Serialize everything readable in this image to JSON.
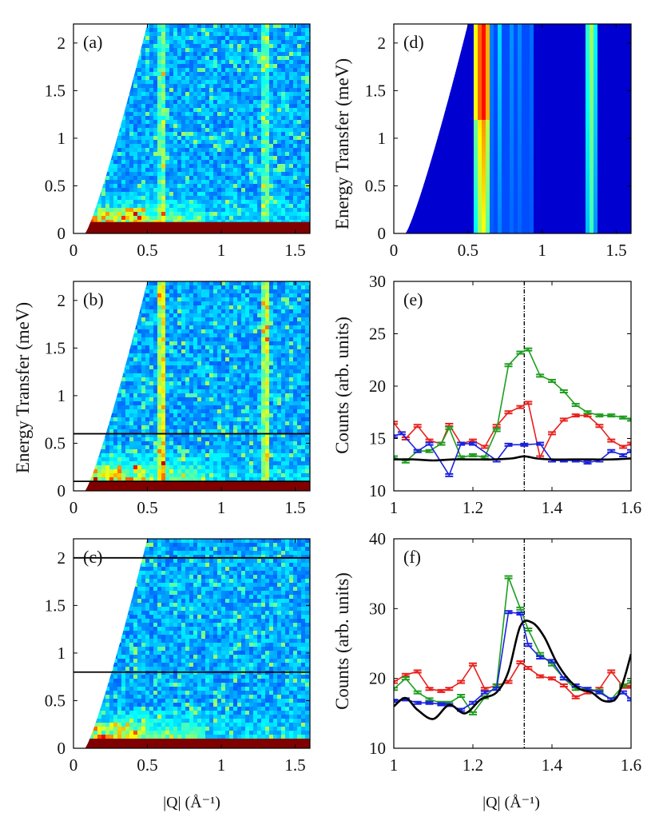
{
  "colors": {
    "dark_blue": "#00008f",
    "dark_red": "#800000",
    "red_series": "#e8201c",
    "green_series": "#1e9e1e",
    "blue_series": "#1a22e0",
    "model_line": "#000000"
  },
  "chart_data": [
    {
      "id": "a",
      "type": "heatmap",
      "letter": "(a)",
      "xlim": [
        0,
        1.6
      ],
      "ylim": [
        0,
        2.2
      ],
      "x_ticks": [
        "0",
        "0.5",
        "1",
        "1.5"
      ],
      "y_ticks": [
        "0",
        "0.5",
        "1",
        "1.5",
        "2"
      ],
      "streaks_Q": [
        0.6,
        1.3
      ],
      "elastic_line_meV": 0.12,
      "cut_lines_meV": []
    },
    {
      "id": "b",
      "type": "heatmap",
      "letter": "(b)",
      "xlim": [
        0,
        1.6
      ],
      "ylim": [
        0,
        2.2
      ],
      "x_ticks": [
        "0",
        "0.5",
        "1",
        "1.5"
      ],
      "y_ticks": [
        "0",
        "0.5",
        "1",
        "1.5",
        "2"
      ],
      "ylabel": "Energy Transfer (meV)",
      "streaks_Q": [
        0.6,
        1.3
      ],
      "elastic_line_meV": 0.1,
      "cut_lines_meV": [
        0.1,
        0.6
      ]
    },
    {
      "id": "c",
      "type": "heatmap",
      "letter": "(c)",
      "xlim": [
        0,
        1.6
      ],
      "ylim": [
        0,
        2.2
      ],
      "x_ticks": [
        "0",
        "0.5",
        "1",
        "1.5"
      ],
      "y_ticks": [
        "0",
        "0.5",
        "1",
        "1.5",
        "2"
      ],
      "xlabel": "|Q| (Å⁻¹)",
      "streaks_Q": [],
      "elastic_line_meV": 0.1,
      "cut_lines_meV": [
        0.8,
        2.0
      ]
    },
    {
      "id": "d",
      "type": "heatmap",
      "letter": "(d)",
      "xlim": [
        0,
        1.6
      ],
      "ylim": [
        0,
        2.2
      ],
      "x_ticks": [
        "0",
        "0.5",
        "1",
        "1.5"
      ],
      "y_ticks": [
        "0",
        "0.5",
        "1",
        "1.5",
        "2"
      ],
      "ylabel": "Energy Transfer (meV)",
      "streaks_Q": [
        0.6,
        1.33
      ],
      "cut_lines_meV": []
    },
    {
      "id": "e",
      "type": "line",
      "letter": "(e)",
      "xlim": [
        1,
        1.6
      ],
      "ylim": [
        10,
        30
      ],
      "x_ticks": [
        "1",
        "1.2",
        "1.4",
        "1.6"
      ],
      "y_ticks": [
        "10",
        "15",
        "20",
        "25",
        "30"
      ],
      "ylabel": "Counts (arb. units)",
      "vline_x": 1.33,
      "series": [
        {
          "name": "red",
          "color": "#e8201c",
          "x": [
            1.0,
            1.03,
            1.06,
            1.09,
            1.12,
            1.14,
            1.17,
            1.2,
            1.23,
            1.26,
            1.29,
            1.32,
            1.34,
            1.37,
            1.4,
            1.43,
            1.46,
            1.49,
            1.52,
            1.55,
            1.58,
            1.6
          ],
          "y": [
            16.5,
            15.0,
            16.2,
            14.8,
            14.5,
            16.3,
            14.5,
            14.8,
            14.2,
            16.2,
            17.5,
            18.0,
            18.4,
            13.2,
            15.5,
            16.8,
            17.2,
            17.2,
            16.2,
            14.8,
            14.2,
            14.5
          ]
        },
        {
          "name": "green",
          "color": "#1e9e1e",
          "x": [
            1.0,
            1.03,
            1.06,
            1.09,
            1.12,
            1.14,
            1.17,
            1.2,
            1.23,
            1.26,
            1.29,
            1.32,
            1.34,
            1.37,
            1.4,
            1.43,
            1.46,
            1.49,
            1.52,
            1.55,
            1.58,
            1.6
          ],
          "y": [
            13.2,
            12.8,
            13.8,
            13.8,
            14.5,
            16.0,
            13.2,
            13.4,
            13.2,
            15.8,
            22.0,
            23.2,
            23.5,
            21.0,
            20.5,
            19.5,
            18.2,
            17.5,
            17.2,
            17.2,
            17.0,
            16.8
          ]
        },
        {
          "name": "blue",
          "color": "#1a22e0",
          "x": [
            1.0,
            1.02,
            1.06,
            1.09,
            1.14,
            1.17,
            1.2,
            1.26,
            1.29,
            1.33,
            1.37,
            1.4,
            1.43,
            1.46,
            1.49,
            1.52,
            1.55,
            1.58,
            1.6
          ],
          "y": [
            15.2,
            15.5,
            13.8,
            14.5,
            11.5,
            14.5,
            14.5,
            12.9,
            14.4,
            14.4,
            14.5,
            12.9,
            12.9,
            12.9,
            12.7,
            12.9,
            13.8,
            13.4,
            13.8
          ]
        },
        {
          "name": "model",
          "color": "#000000",
          "smooth": true,
          "x": [
            1.0,
            1.05,
            1.1,
            1.15,
            1.2,
            1.25,
            1.3,
            1.33,
            1.36,
            1.4,
            1.45,
            1.5,
            1.55,
            1.6
          ],
          "y": [
            13.0,
            13.0,
            12.9,
            13.0,
            13.0,
            13.0,
            13.1,
            13.3,
            13.1,
            13.0,
            13.0,
            13.0,
            13.0,
            13.1
          ]
        }
      ]
    },
    {
      "id": "f",
      "type": "line",
      "letter": "(f)",
      "xlim": [
        1,
        1.6
      ],
      "ylim": [
        10,
        40
      ],
      "x_ticks": [
        "1",
        "1.2",
        "1.4",
        "1.6"
      ],
      "y_ticks": [
        "10",
        "20",
        "30",
        "40"
      ],
      "ylabel": "Counts (arb. units)",
      "xlabel": "|Q| (Å⁻¹)",
      "vline_x": 1.33,
      "series": [
        {
          "name": "red",
          "color": "#e8201c",
          "x": [
            1.0,
            1.03,
            1.06,
            1.09,
            1.12,
            1.14,
            1.17,
            1.2,
            1.23,
            1.26,
            1.29,
            1.32,
            1.34,
            1.37,
            1.4,
            1.43,
            1.46,
            1.49,
            1.52,
            1.55,
            1.58,
            1.6
          ],
          "y": [
            19.5,
            20.5,
            21.0,
            18.5,
            18.2,
            18.5,
            19.5,
            22.0,
            18.5,
            19.0,
            19.5,
            22.3,
            21.5,
            20.3,
            20.0,
            19.0,
            17.3,
            18.0,
            18.5,
            21.0,
            18.8,
            18.8
          ]
        },
        {
          "name": "green",
          "color": "#1e9e1e",
          "x": [
            1.0,
            1.03,
            1.06,
            1.09,
            1.12,
            1.14,
            1.17,
            1.2,
            1.23,
            1.26,
            1.29,
            1.32,
            1.34,
            1.37,
            1.4,
            1.43,
            1.46,
            1.49,
            1.52,
            1.55,
            1.58,
            1.6
          ],
          "y": [
            18.5,
            20.0,
            18.0,
            17.0,
            16.5,
            16.5,
            17.5,
            15.0,
            17.3,
            19.0,
            34.5,
            30.0,
            27.0,
            23.5,
            22.0,
            20.0,
            18.5,
            18.5,
            18.2,
            17.0,
            19.0,
            19.5
          ]
        },
        {
          "name": "blue",
          "color": "#1a22e0",
          "x": [
            1.0,
            1.03,
            1.06,
            1.09,
            1.12,
            1.14,
            1.17,
            1.2,
            1.23,
            1.26,
            1.29,
            1.32,
            1.34,
            1.37,
            1.4,
            1.43,
            1.46,
            1.49,
            1.52,
            1.55,
            1.58,
            1.6
          ],
          "y": [
            16.8,
            17.0,
            16.5,
            16.5,
            16.3,
            16.2,
            15.5,
            16.5,
            18.0,
            18.5,
            29.5,
            29.3,
            24.8,
            23.0,
            22.5,
            20.0,
            19.0,
            18.5,
            18.0,
            17.0,
            18.0,
            17.0
          ]
        },
        {
          "name": "model",
          "color": "#000000",
          "smooth": true,
          "x": [
            1.0,
            1.03,
            1.06,
            1.1,
            1.14,
            1.18,
            1.22,
            1.26,
            1.29,
            1.32,
            1.35,
            1.38,
            1.41,
            1.44,
            1.47,
            1.5,
            1.53,
            1.56,
            1.58,
            1.6
          ],
          "y": [
            16.0,
            17.2,
            15.5,
            14.2,
            16.2,
            15.0,
            17.0,
            18.0,
            21.0,
            27.5,
            28.0,
            26.0,
            22.5,
            20.0,
            18.5,
            18.0,
            16.8,
            17.0,
            19.5,
            23.5
          ]
        }
      ]
    }
  ]
}
